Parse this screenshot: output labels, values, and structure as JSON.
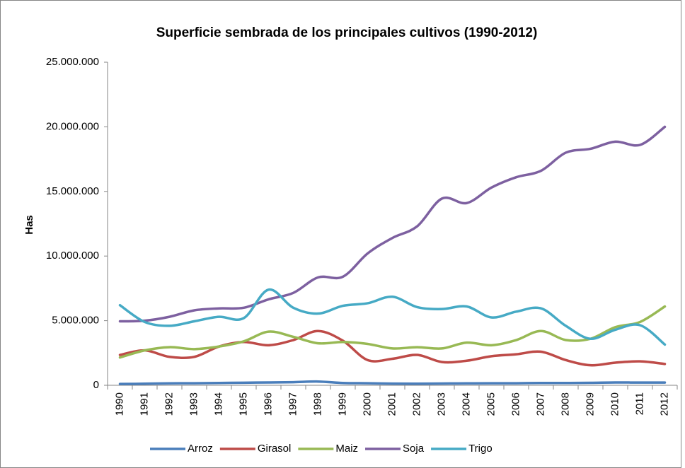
{
  "chart_data": {
    "type": "line",
    "title": "Superficie sembrada de los principales cultivos (1990-2012)",
    "y_label": "Has",
    "categories": [
      "1990",
      "1991",
      "1992",
      "1993",
      "1994",
      "1995",
      "1996",
      "1997",
      "1998",
      "1999",
      "2000",
      "2001",
      "2002",
      "2003",
      "2004",
      "2005",
      "2006",
      "2007",
      "2008",
      "2009",
      "2010",
      "2011",
      "2012"
    ],
    "series": [
      {
        "name": "Arroz",
        "color": "#4a7ebb",
        "values": [
          100000,
          120000,
          150000,
          160000,
          180000,
          200000,
          220000,
          240000,
          290000,
          180000,
          160000,
          130000,
          120000,
          140000,
          150000,
          160000,
          160000,
          180000,
          180000,
          190000,
          220000,
          210000,
          210000
        ]
      },
      {
        "name": "Girasol",
        "color": "#be4b48",
        "values": [
          2350000,
          2700000,
          2200000,
          2200000,
          3000000,
          3350000,
          3100000,
          3500000,
          4200000,
          3450000,
          1950000,
          2050000,
          2350000,
          1800000,
          1900000,
          2250000,
          2400000,
          2600000,
          1950000,
          1550000,
          1750000,
          1850000,
          1650000
        ]
      },
      {
        "name": "Maiz",
        "color": "#98b954",
        "values": [
          2150000,
          2700000,
          2950000,
          2800000,
          3000000,
          3400000,
          4150000,
          3750000,
          3250000,
          3350000,
          3200000,
          2850000,
          2950000,
          2850000,
          3300000,
          3100000,
          3500000,
          4200000,
          3500000,
          3600000,
          4500000,
          4900000,
          6100000
        ]
      },
      {
        "name": "Soja",
        "color": "#7d60a0",
        "values": [
          4950000,
          5000000,
          5300000,
          5800000,
          5950000,
          6000000,
          6650000,
          7150000,
          8350000,
          8400000,
          10200000,
          11400000,
          12300000,
          14450000,
          14100000,
          15300000,
          16100000,
          16600000,
          18000000,
          18300000,
          18850000,
          18600000,
          20000000
        ]
      },
      {
        "name": "Trigo",
        "color": "#46aac5",
        "values": [
          6200000,
          4900000,
          4600000,
          4950000,
          5300000,
          5200000,
          7400000,
          6000000,
          5550000,
          6150000,
          6350000,
          6850000,
          6050000,
          5900000,
          6100000,
          5250000,
          5700000,
          5950000,
          4600000,
          3600000,
          4300000,
          4650000,
          3150000
        ]
      }
    ],
    "ylim": [
      0,
      25000000
    ],
    "yticks": [
      0,
      {
        "value": 5000000,
        "label": "5.000.000"
      },
      {
        "value": 10000000,
        "label": "10.000.000"
      },
      {
        "value": 15000000,
        "label": "15.000.000"
      },
      {
        "value": 20000000,
        "label": "20.000.000"
      },
      {
        "value": 25000000,
        "label": "25.000.000"
      }
    ],
    "grid": false,
    "legend": "bottom"
  }
}
